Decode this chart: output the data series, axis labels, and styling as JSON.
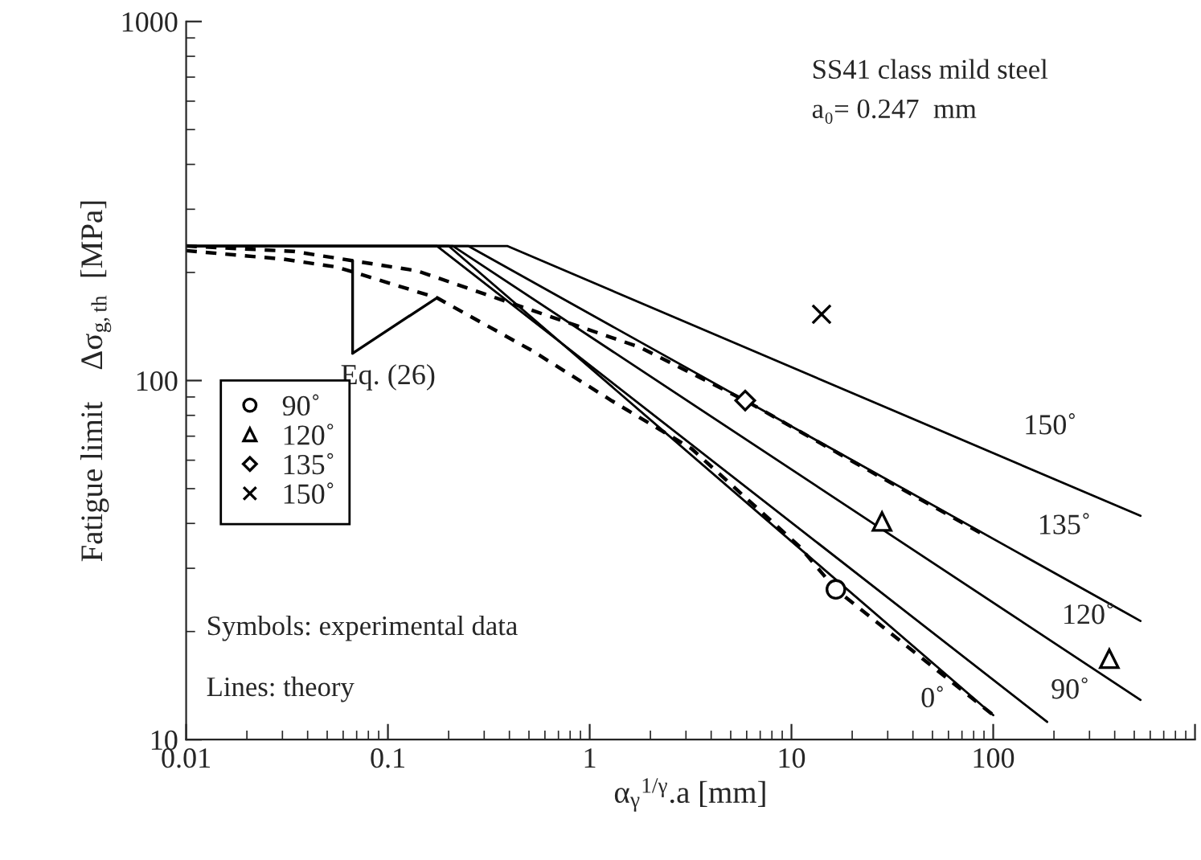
{
  "chart_data": {
    "type": "line",
    "xlabel": "α$_{γ}$$^{1/γ}$.a [mm]",
    "ylabel": "Fatigue limit    Δσ$_{g,th}$  [MPa]",
    "xlim": [
      0.01,
      1000
    ],
    "ylim": [
      10,
      1000
    ],
    "xticks": [
      0.01,
      0.1,
      1,
      10,
      100,
      {
        "value": 1000,
        "label": null
      }
    ],
    "yticks": [
      10,
      100,
      1000
    ],
    "log": "xy",
    "grid": false,
    "legend": "left",
    "series": [
      {
        "line_style": "solid",
        "color": "#000000",
        "x": [
          0.01,
          0.2,
          100
        ],
        "values": [
          237,
          237,
          11.7
        ]
      },
      {
        "line_style": "solid",
        "color": "#000000",
        "x": [
          0.01,
          0.175,
          185
        ],
        "values": [
          237,
          237,
          11.2
        ]
      },
      {
        "line_style": "solid",
        "color": "#000000",
        "x": [
          0.01,
          0.21,
          537
        ],
        "values": [
          237,
          237,
          12.9
        ]
      },
      {
        "line_style": "solid",
        "color": "#000000",
        "x": [
          0.01,
          0.25,
          537
        ],
        "values": [
          237,
          237,
          21.4
        ]
      },
      {
        "line_style": "solid",
        "color": "#000000",
        "x": [
          0.01,
          0.39,
          537
        ],
        "values": [
          237,
          237,
          42
        ]
      },
      {
        "line_style": "dashed",
        "color": "#000000",
        "x": [
          0.01,
          0.034,
          0.14,
          0.59,
          1.76,
          5.9,
          19.6,
          89
        ],
        "values": [
          237,
          229,
          202,
          153,
          124,
          88,
          60,
          37.3
        ]
      },
      {
        "line_style": "dashed",
        "color": "#000000",
        "x": [
          0.01,
          0.03,
          0.056,
          0.175,
          0.52,
          1.28,
          3.2,
          10.9,
          16.6,
          100
        ],
        "values": [
          230,
          218,
          207,
          170,
          121,
          88,
          64.6,
          34.6,
          26.2,
          11.7
        ]
      },
      {
        "type": "scatter",
        "name": "90˚",
        "marker": "circle",
        "color": "#000000",
        "x": [
          16.6
        ],
        "values": [
          26.2
        ]
      },
      {
        "type": "scatter",
        "name": "120˚",
        "marker": "triangle",
        "color": "#000000",
        "x": [
          28.1,
          376
        ],
        "values": [
          40.5,
          16.8
        ]
      },
      {
        "type": "scatter",
        "name": "135˚",
        "marker": "diamond",
        "color": "#000000",
        "x": [
          5.9
        ],
        "values": [
          88
        ]
      },
      {
        "type": "scatter",
        "name": "150˚",
        "marker": "cross",
        "color": "#000000",
        "x": [
          14.1
        ],
        "values": [
          153
        ]
      }
    ],
    "annotations": [
      "SS41 class mild steel",
      "a₀= 0.247  mm",
      "Symbols: experimental data",
      "Lines: theory",
      {
        "text": "Eq. (26)",
        "x": 0.175,
        "y": 170
      },
      "150˚",
      "135˚",
      "120˚",
      "90˚",
      "0˚"
    ]
  }
}
